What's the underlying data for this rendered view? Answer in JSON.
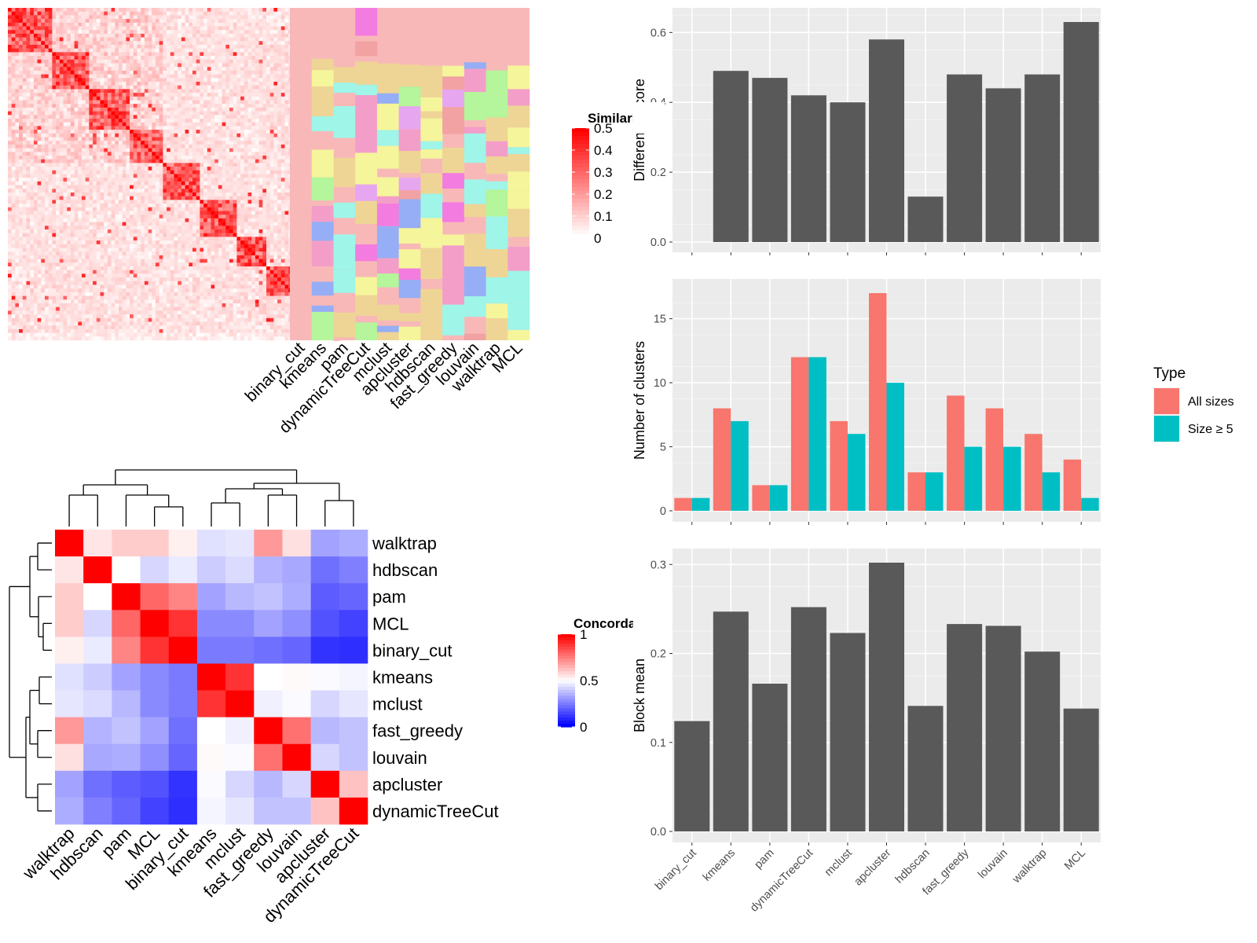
{
  "methods": [
    "binary_cut",
    "kmeans",
    "pam",
    "dynamicTreeCut",
    "mclust",
    "apcluster",
    "hdbscan",
    "fast_greedy",
    "louvain",
    "walktrap",
    "MCL"
  ],
  "similarity_legend": {
    "title": "Similarity",
    "ticks": [
      "0",
      "0.1",
      "0.2",
      "0.3",
      "0.4",
      "0.5"
    ],
    "colors": [
      "#ffffff",
      "#ff0000"
    ]
  },
  "concordance_legend": {
    "title": "Concordance",
    "ticks": [
      "0",
      "0.5",
      "1"
    ],
    "colors": [
      "#0000ff",
      "#ffffff",
      "#ff0000"
    ]
  },
  "concordance_order": [
    "walktrap",
    "hdbscan",
    "pam",
    "MCL",
    "binary_cut",
    "kmeans",
    "mclust",
    "fast_greedy",
    "louvain",
    "apcluster",
    "dynamicTreeCut"
  ],
  "palette": [
    "#f8b8b8",
    "#9ef5e8",
    "#eed595",
    "#f5f59b",
    "#f39ec9",
    "#96aef5",
    "#b5f59b",
    "#f37ce0",
    "#f2a2a2",
    "#e6a6f0"
  ],
  "chart_data": [
    {
      "type": "heatmap",
      "name": "similarity_matrix",
      "size": 90,
      "blocks": [
        [
          0,
          12
        ],
        [
          12,
          22
        ],
        [
          22,
          33
        ],
        [
          33,
          42
        ],
        [
          42,
          52
        ],
        [
          52,
          62
        ],
        [
          62,
          70
        ],
        [
          70,
          78
        ],
        [
          78,
          84
        ],
        [
          84,
          88
        ]
      ],
      "value_range": [
        0,
        0.5
      ]
    },
    {
      "type": "heatmap",
      "name": "cluster_assignments",
      "columns": [
        "binary_cut",
        "kmeans",
        "pam",
        "dynamicTreeCut",
        "mclust",
        "apcluster",
        "hdbscan",
        "fast_greedy",
        "louvain",
        "walktrap",
        "MCL"
      ]
    },
    {
      "type": "bar",
      "name": "difference_score",
      "categories": [
        "binary_cut",
        "kmeans",
        "pam",
        "dynamicTreeCut",
        "mclust",
        "apcluster",
        "hdbscan",
        "fast_greedy",
        "louvain",
        "walktrap",
        "MCL"
      ],
      "values": [
        0,
        0.49,
        0.47,
        0.42,
        0.4,
        0.58,
        0.13,
        0.48,
        0.44,
        0.48,
        0.63
      ],
      "ylabel": "Difference score",
      "ylim": [
        0,
        0.63
      ],
      "yticks": [
        0.0,
        0.2,
        0.4,
        0.6
      ],
      "yticklabels": [
        "0.0",
        "0.2",
        "0.4",
        "0.6"
      ]
    },
    {
      "type": "bar",
      "name": "number_of_clusters",
      "categories": [
        "binary_cut",
        "kmeans",
        "pam",
        "dynamicTreeCut",
        "mclust",
        "apcluster",
        "hdbscan",
        "fast_greedy",
        "louvain",
        "walktrap",
        "MCL"
      ],
      "series": [
        {
          "name": "All sizes",
          "color": "#f8766d",
          "values": [
            1,
            8,
            2,
            12,
            7,
            17,
            3,
            9,
            8,
            6,
            4
          ]
        },
        {
          "name": "Size ≥ 5",
          "color": "#00bfc4",
          "values": [
            1,
            7,
            2,
            12,
            6,
            10,
            3,
            5,
            5,
            3,
            1
          ]
        }
      ],
      "ylabel": "Number of clusters",
      "ylim": [
        0,
        17
      ],
      "yticks": [
        0,
        5,
        10,
        15
      ],
      "yticklabels": [
        "0",
        "5",
        "10",
        "15"
      ],
      "legend": {
        "title": "Type",
        "position": "right"
      }
    },
    {
      "type": "bar",
      "name": "block_mean",
      "categories": [
        "binary_cut",
        "kmeans",
        "pam",
        "dynamicTreeCut",
        "mclust",
        "apcluster",
        "hdbscan",
        "fast_greedy",
        "louvain",
        "walktrap",
        "MCL"
      ],
      "values": [
        0.124,
        0.247,
        0.166,
        0.252,
        0.223,
        0.302,
        0.141,
        0.233,
        0.231,
        0.202,
        0.138
      ],
      "ylabel": "Block mean",
      "ylim": [
        0,
        0.302
      ],
      "yticks": [
        0.0,
        0.1,
        0.2,
        0.3
      ],
      "yticklabels": [
        "0.0",
        "0.1",
        "0.2",
        "0.3"
      ]
    },
    {
      "type": "heatmap",
      "name": "concordance",
      "rows": [
        "walktrap",
        "hdbscan",
        "pam",
        "MCL",
        "binary_cut",
        "kmeans",
        "mclust",
        "fast_greedy",
        "louvain",
        "apcluster",
        "dynamicTreeCut"
      ],
      "columns": [
        "walktrap",
        "hdbscan",
        "pam",
        "MCL",
        "binary_cut",
        "kmeans",
        "mclust",
        "fast_greedy",
        "louvain",
        "apcluster",
        "dynamicTreeCut"
      ],
      "values": [
        [
          1.0,
          0.55,
          0.6,
          0.6,
          0.53,
          0.44,
          0.45,
          0.7,
          0.56,
          0.32,
          0.34
        ],
        [
          0.55,
          1.0,
          0.5,
          0.42,
          0.46,
          0.4,
          0.43,
          0.35,
          0.33,
          0.22,
          0.25
        ],
        [
          0.6,
          0.5,
          1.0,
          0.8,
          0.74,
          0.32,
          0.36,
          0.38,
          0.34,
          0.18,
          0.2
        ],
        [
          0.6,
          0.42,
          0.8,
          1.0,
          0.9,
          0.27,
          0.27,
          0.32,
          0.28,
          0.16,
          0.13
        ],
        [
          0.53,
          0.46,
          0.74,
          0.9,
          1.0,
          0.24,
          0.24,
          0.22,
          0.2,
          0.1,
          0.09
        ],
        [
          0.44,
          0.4,
          0.32,
          0.27,
          0.24,
          1.0,
          0.9,
          0.5,
          0.51,
          0.49,
          0.48
        ],
        [
          0.45,
          0.43,
          0.36,
          0.27,
          0.24,
          0.9,
          1.0,
          0.47,
          0.49,
          0.42,
          0.45
        ],
        [
          0.7,
          0.35,
          0.38,
          0.32,
          0.22,
          0.5,
          0.47,
          1.0,
          0.78,
          0.36,
          0.38
        ],
        [
          0.56,
          0.33,
          0.34,
          0.28,
          0.2,
          0.51,
          0.49,
          0.78,
          1.0,
          0.42,
          0.38
        ],
        [
          0.32,
          0.22,
          0.18,
          0.16,
          0.1,
          0.49,
          0.42,
          0.36,
          0.42,
          1.0,
          0.62
        ],
        [
          0.34,
          0.25,
          0.2,
          0.13,
          0.09,
          0.48,
          0.45,
          0.38,
          0.38,
          0.62,
          1.0
        ]
      ],
      "value_range": [
        0,
        1
      ]
    }
  ]
}
